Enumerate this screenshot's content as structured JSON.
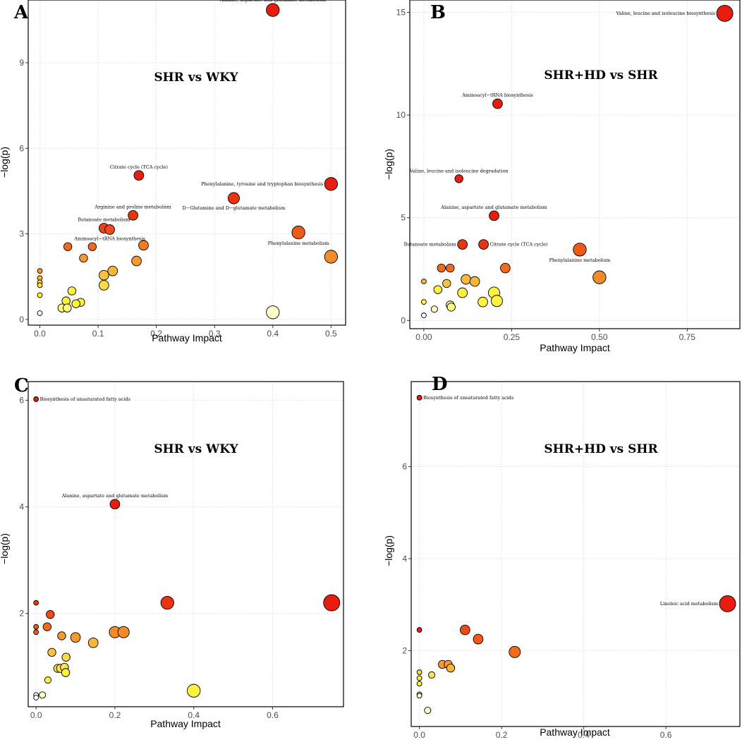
{
  "chart_data": [
    {
      "id": "A",
      "type": "scatter",
      "panel_letter": "A",
      "title": "SHR vs WKY",
      "xlabel": "Pathway Impact",
      "ylabel": "−log(p)",
      "xlim": [
        -0.02,
        0.525
      ],
      "ylim": [
        -0.2,
        11.2
      ],
      "xticks": [
        0,
        0.1,
        0.2,
        0.3,
        0.4,
        0.5
      ],
      "xtick_labels": [
        "0.0",
        "0.1",
        "0.2",
        "0.3",
        "0.4",
        "0.5"
      ],
      "yticks": [
        0,
        3,
        6,
        9
      ],
      "ytick_labels": [
        "0",
        "3",
        "6",
        "9"
      ],
      "grid": true,
      "points": [
        {
          "x": 0.4,
          "y": 10.85,
          "size": 8,
          "color": "#e81c0f",
          "label": "Alanine, aspartate and glutamate metabolism",
          "label_pos": "above"
        },
        {
          "x": 0.17,
          "y": 5.05,
          "size": 6,
          "color": "#e81c0f",
          "label": "Citrate cycle (TCA cycle)",
          "label_pos": "above"
        },
        {
          "x": 0.5,
          "y": 4.75,
          "size": 8,
          "color": "#e81c0f",
          "label": "Phenylalanine, tyrosine and tryptophan biosynthesis",
          "label_pos": "left"
        },
        {
          "x": 0.333,
          "y": 4.25,
          "size": 7,
          "color": "#e8350f",
          "label": "D−Glutamine and D−glutamate metabolism",
          "label_pos": "below"
        },
        {
          "x": 0.16,
          "y": 3.65,
          "size": 6,
          "color": "#e8350f",
          "label": "Arginine and proline metabolism",
          "label_pos": "above"
        },
        {
          "x": 0.444,
          "y": 3.05,
          "size": 8,
          "color": "#f05a16",
          "label": "Phenylalanine metabolism",
          "label_pos": "below"
        },
        {
          "x": 0.11,
          "y": 3.2,
          "size": 6,
          "color": "#f0401a",
          "label": "Butanoate metabolism",
          "label_pos": "above"
        },
        {
          "x": 0.12,
          "y": 3.15,
          "size": 6,
          "color": "#f04a1a",
          "label": "Aminoacyl−tRNA biosynthesis",
          "label_pos": "below"
        },
        {
          "x": 0.048,
          "y": 2.55,
          "size": 5,
          "color": "#f26a1e",
          "label": ""
        },
        {
          "x": 0.09,
          "y": 2.55,
          "size": 5,
          "color": "#f26a1e",
          "label": ""
        },
        {
          "x": 0.178,
          "y": 2.6,
          "size": 6,
          "color": "#f27a22",
          "label": ""
        },
        {
          "x": 0.5,
          "y": 2.2,
          "size": 8,
          "color": "#f58a28",
          "label": ""
        },
        {
          "x": 0.075,
          "y": 2.15,
          "size": 5,
          "color": "#f59a30",
          "label": ""
        },
        {
          "x": 0.166,
          "y": 2.05,
          "size": 6,
          "color": "#f59a30",
          "label": ""
        },
        {
          "x": 0.125,
          "y": 1.7,
          "size": 6,
          "color": "#f9b73a",
          "label": ""
        },
        {
          "x": 0.11,
          "y": 1.55,
          "size": 6,
          "color": "#f9c23c",
          "label": ""
        },
        {
          "x": 0.11,
          "y": 1.2,
          "size": 6,
          "color": "#fbd848",
          "label": ""
        },
        {
          "x": 0.0,
          "y": 1.7,
          "size": 3,
          "color": "#f59a30",
          "label": ""
        },
        {
          "x": 0.0,
          "y": 1.45,
          "size": 3,
          "color": "#f9b73a",
          "label": ""
        },
        {
          "x": 0.0,
          "y": 1.3,
          "size": 3,
          "color": "#fbd848",
          "label": ""
        },
        {
          "x": 0.0,
          "y": 1.2,
          "size": 3,
          "color": "#fde24e",
          "label": ""
        },
        {
          "x": 0.0,
          "y": 0.85,
          "size": 3,
          "color": "#fff23e",
          "label": ""
        },
        {
          "x": 0.055,
          "y": 1.0,
          "size": 5,
          "color": "#fff23e",
          "label": ""
        },
        {
          "x": 0.045,
          "y": 0.65,
          "size": 5,
          "color": "#fff23e",
          "label": ""
        },
        {
          "x": 0.07,
          "y": 0.6,
          "size": 5,
          "color": "#fff23e",
          "label": ""
        },
        {
          "x": 0.062,
          "y": 0.55,
          "size": 5,
          "color": "#fff23e",
          "label": ""
        },
        {
          "x": 0.038,
          "y": 0.4,
          "size": 5,
          "color": "#fffa80",
          "label": ""
        },
        {
          "x": 0.047,
          "y": 0.4,
          "size": 5,
          "color": "#fffa80",
          "label": ""
        },
        {
          "x": 0.4,
          "y": 0.25,
          "size": 8,
          "color": "#fffbc8",
          "label": ""
        },
        {
          "x": 0.0,
          "y": 0.22,
          "size": 3,
          "color": "#ffffff",
          "label": ""
        }
      ]
    },
    {
      "id": "B",
      "type": "scatter",
      "panel_letter": "B",
      "title": "SHR+HD vs SHR",
      "xlabel": "Pathway Impact",
      "ylabel": "−log(p)",
      "xlim": [
        -0.04,
        0.9
      ],
      "ylim": [
        -0.4,
        15.6
      ],
      "xticks": [
        0,
        0.25,
        0.5,
        0.75
      ],
      "xtick_labels": [
        "0.00",
        "0.25",
        "0.50",
        "0.75"
      ],
      "yticks": [
        0,
        5,
        10,
        15
      ],
      "ytick_labels": [
        "0",
        "5",
        "10",
        "15"
      ],
      "grid": true,
      "points": [
        {
          "x": 0.857,
          "y": 14.95,
          "size": 10,
          "color": "#e81c0f",
          "label": "Valine, leucine and isoleucine biosynthesis",
          "label_pos": "left"
        },
        {
          "x": 0.21,
          "y": 10.55,
          "size": 6,
          "color": "#e81c0f",
          "label": "Aminoacyl−tRNA biosynthesis",
          "label_pos": "above"
        },
        {
          "x": 0.1,
          "y": 6.9,
          "size": 5,
          "color": "#e81c0f",
          "label": "Valine, leucine and isoleucine degradation",
          "label_pos": "above"
        },
        {
          "x": 0.2,
          "y": 5.1,
          "size": 6,
          "color": "#e81c0f",
          "label": "Alanine, aspartate and glutamate metabolism",
          "label_pos": "above"
        },
        {
          "x": 0.11,
          "y": 3.7,
          "size": 6,
          "color": "#e8350f",
          "label": "Butanoate metabolism",
          "label_pos": "left"
        },
        {
          "x": 0.17,
          "y": 3.7,
          "size": 6,
          "color": "#e8350f",
          "label": "Citrate cycle (TCA cycle)",
          "label_pos": "right"
        },
        {
          "x": 0.444,
          "y": 3.45,
          "size": 8,
          "color": "#f05a16",
          "label": "Phenylalanine metabolism",
          "label_pos": "below"
        },
        {
          "x": 0.5,
          "y": 2.1,
          "size": 8,
          "color": "#f58a28",
          "label": ""
        },
        {
          "x": 0.232,
          "y": 2.55,
          "size": 6,
          "color": "#f26a1e",
          "label": ""
        },
        {
          "x": 0.05,
          "y": 2.55,
          "size": 5,
          "color": "#f26a1e",
          "label": ""
        },
        {
          "x": 0.075,
          "y": 2.55,
          "size": 5,
          "color": "#f26a1e",
          "label": ""
        },
        {
          "x": 0.12,
          "y": 2.0,
          "size": 6,
          "color": "#f9b73a",
          "label": ""
        },
        {
          "x": 0.145,
          "y": 1.9,
          "size": 6,
          "color": "#f9b73a",
          "label": ""
        },
        {
          "x": 0.065,
          "y": 1.8,
          "size": 5,
          "color": "#f9c23c",
          "label": ""
        },
        {
          "x": 0.0,
          "y": 1.9,
          "size": 3,
          "color": "#f9b73a",
          "label": ""
        },
        {
          "x": 0.04,
          "y": 1.5,
          "size": 5,
          "color": "#fff23e",
          "label": ""
        },
        {
          "x": 0.11,
          "y": 1.35,
          "size": 6,
          "color": "#fff23e",
          "label": ""
        },
        {
          "x": 0.2,
          "y": 1.35,
          "size": 7,
          "color": "#fff23e",
          "label": ""
        },
        {
          "x": 0.168,
          "y": 0.9,
          "size": 6,
          "color": "#fff23e",
          "label": ""
        },
        {
          "x": 0.208,
          "y": 0.95,
          "size": 7,
          "color": "#fff23e",
          "label": ""
        },
        {
          "x": 0.0,
          "y": 0.9,
          "size": 3,
          "color": "#fff23e",
          "label": ""
        },
        {
          "x": 0.075,
          "y": 0.75,
          "size": 5,
          "color": "#fffa80",
          "label": ""
        },
        {
          "x": 0.078,
          "y": 0.65,
          "size": 5,
          "color": "#fffa80",
          "label": ""
        },
        {
          "x": 0.03,
          "y": 0.55,
          "size": 4,
          "color": "#fffbc8",
          "label": ""
        },
        {
          "x": 0.0,
          "y": 0.25,
          "size": 3,
          "color": "#ffffff",
          "label": ""
        }
      ]
    },
    {
      "id": "C",
      "type": "scatter",
      "panel_letter": "C",
      "title": "SHR vs WKY",
      "xlabel": "Pathway Impact",
      "ylabel": "−log(p)",
      "xlim": [
        -0.02,
        0.78
      ],
      "ylim": [
        0.25,
        6.35
      ],
      "xticks": [
        0,
        0.2,
        0.4,
        0.6
      ],
      "xtick_labels": [
        "0.0",
        "0.2",
        "0.4",
        "0.6"
      ],
      "yticks": [
        2,
        4,
        6
      ],
      "ytick_labels": [
        "2",
        "4",
        "6"
      ],
      "grid": true,
      "points": [
        {
          "x": 0.0,
          "y": 6.02,
          "size": 3,
          "color": "#e81c0f",
          "label": "Biosynthesis of unsaturated fatty acids",
          "label_pos": "right"
        },
        {
          "x": 0.2,
          "y": 4.05,
          "size": 6,
          "color": "#e81c0f",
          "label": "Alanine, aspartate and glutamate metabolism",
          "label_pos": "above"
        },
        {
          "x": 0.75,
          "y": 2.2,
          "size": 10,
          "color": "#e81c0f",
          "label": ""
        },
        {
          "x": 0.333,
          "y": 2.2,
          "size": 8,
          "color": "#e8350f",
          "label": ""
        },
        {
          "x": 0.0,
          "y": 2.2,
          "size": 3,
          "color": "#e8350f",
          "label": ""
        },
        {
          "x": 0.036,
          "y": 1.98,
          "size": 5,
          "color": "#f04a1a",
          "label": ""
        },
        {
          "x": 0.0,
          "y": 1.75,
          "size": 3,
          "color": "#f05a16",
          "label": ""
        },
        {
          "x": 0.0,
          "y": 1.65,
          "size": 3,
          "color": "#f05a16",
          "label": ""
        },
        {
          "x": 0.028,
          "y": 1.75,
          "size": 5,
          "color": "#f26a1e",
          "label": ""
        },
        {
          "x": 0.2,
          "y": 1.65,
          "size": 7,
          "color": "#f58a28",
          "label": ""
        },
        {
          "x": 0.222,
          "y": 1.65,
          "size": 7,
          "color": "#f58a28",
          "label": ""
        },
        {
          "x": 0.065,
          "y": 1.58,
          "size": 5,
          "color": "#f59a30",
          "label": ""
        },
        {
          "x": 0.1,
          "y": 1.55,
          "size": 6,
          "color": "#f59a30",
          "label": ""
        },
        {
          "x": 0.145,
          "y": 1.45,
          "size": 6,
          "color": "#f9b73a",
          "label": ""
        },
        {
          "x": 0.04,
          "y": 1.27,
          "size": 5,
          "color": "#f9c23c",
          "label": ""
        },
        {
          "x": 0.076,
          "y": 1.18,
          "size": 5,
          "color": "#fbd848",
          "label": ""
        },
        {
          "x": 0.055,
          "y": 0.97,
          "size": 5,
          "color": "#fde24e",
          "label": ""
        },
        {
          "x": 0.062,
          "y": 0.97,
          "size": 5,
          "color": "#fde24e",
          "label": ""
        },
        {
          "x": 0.072,
          "y": 0.99,
          "size": 5,
          "color": "#fde24e",
          "label": ""
        },
        {
          "x": 0.075,
          "y": 0.89,
          "size": 5,
          "color": "#fff23e",
          "label": ""
        },
        {
          "x": 0.03,
          "y": 0.75,
          "size": 4,
          "color": "#fff23e",
          "label": ""
        },
        {
          "x": 0.4,
          "y": 0.55,
          "size": 8,
          "color": "#fff23e",
          "label": ""
        },
        {
          "x": 0.016,
          "y": 0.47,
          "size": 4,
          "color": "#fffbc8",
          "label": ""
        },
        {
          "x": 0.0,
          "y": 0.47,
          "size": 3,
          "color": "#ffffff",
          "label": ""
        },
        {
          "x": 0.0,
          "y": 0.42,
          "size": 3,
          "color": "#ffffff",
          "label": ""
        }
      ]
    },
    {
      "id": "D",
      "type": "scatter",
      "panel_letter": "D",
      "title": "SHR+HD vs SHR",
      "xlabel": "Pathway Impact",
      "ylabel": "−log(p)",
      "xlim": [
        -0.02,
        0.78
      ],
      "ylim": [
        0.35,
        7.85
      ],
      "xticks": [
        0,
        0.2,
        0.4,
        0.6
      ],
      "xtick_labels": [
        "0.0",
        "0.2",
        "0.4",
        "0.6"
      ],
      "yticks": [
        2,
        4,
        6
      ],
      "ytick_labels": [
        "2",
        "4",
        "6"
      ],
      "grid": true,
      "points": [
        {
          "x": 0.0,
          "y": 7.5,
          "size": 3,
          "color": "#e81c0f",
          "label": "Biosynthesis of unsaturated fatty acids",
          "label_pos": "right"
        },
        {
          "x": 0.75,
          "y": 3.02,
          "size": 10,
          "color": "#e81c0f",
          "label": "Linoleic acid metabolism",
          "label_pos": "left"
        },
        {
          "x": 0.0,
          "y": 2.45,
          "size": 3,
          "color": "#e81c0f",
          "label": ""
        },
        {
          "x": 0.111,
          "y": 2.45,
          "size": 6,
          "color": "#f04a1a",
          "label": ""
        },
        {
          "x": 0.143,
          "y": 2.25,
          "size": 6,
          "color": "#f05a16",
          "label": ""
        },
        {
          "x": 0.232,
          "y": 1.97,
          "size": 7,
          "color": "#f26a1e",
          "label": ""
        },
        {
          "x": 0.056,
          "y": 1.7,
          "size": 5,
          "color": "#f59a30",
          "label": ""
        },
        {
          "x": 0.07,
          "y": 1.7,
          "size": 5,
          "color": "#f59a30",
          "label": ""
        },
        {
          "x": 0.076,
          "y": 1.62,
          "size": 5,
          "color": "#f9b73a",
          "label": ""
        },
        {
          "x": 0.0,
          "y": 1.53,
          "size": 3,
          "color": "#fbd848",
          "label": ""
        },
        {
          "x": 0.03,
          "y": 1.47,
          "size": 4,
          "color": "#fde24e",
          "label": ""
        },
        {
          "x": 0.0,
          "y": 1.4,
          "size": 3,
          "color": "#fff23e",
          "label": ""
        },
        {
          "x": 0.0,
          "y": 1.28,
          "size": 3,
          "color": "#fff23e",
          "label": ""
        },
        {
          "x": 0.0,
          "y": 1.05,
          "size": 3,
          "color": "#fffbc8",
          "label": ""
        },
        {
          "x": 0.0,
          "y": 1.02,
          "size": 3,
          "color": "#fffbc8",
          "label": ""
        },
        {
          "x": 0.02,
          "y": 0.7,
          "size": 4,
          "color": "#fffbc8",
          "label": ""
        }
      ]
    }
  ]
}
